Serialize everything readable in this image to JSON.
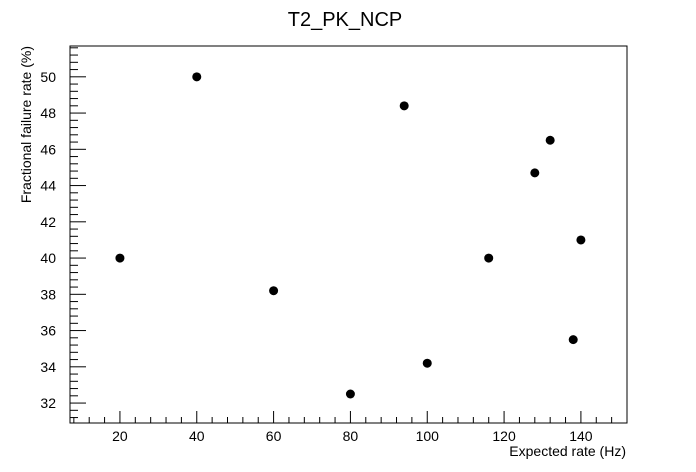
{
  "chart_data": {
    "type": "scatter",
    "title": "T2_PK_NCP",
    "xlabel": "Expected rate (Hz)",
    "ylabel": "Fractional failure rate (%)",
    "xlim": [
      7,
      152
    ],
    "ylim": [
      30.9,
      51.7
    ],
    "xticks": [
      20,
      40,
      60,
      80,
      100,
      120,
      140
    ],
    "yticks": [
      32,
      34,
      36,
      38,
      40,
      42,
      44,
      46,
      48,
      50
    ],
    "grid": false,
    "legend": "none",
    "marker_color": "#000000",
    "x": [
      20,
      40,
      60,
      80,
      94,
      100,
      116,
      128,
      132,
      138,
      140
    ],
    "y": [
      40.0,
      50.0,
      38.2,
      32.5,
      48.4,
      34.2,
      40.0,
      44.7,
      46.5,
      35.5,
      41.0
    ]
  }
}
